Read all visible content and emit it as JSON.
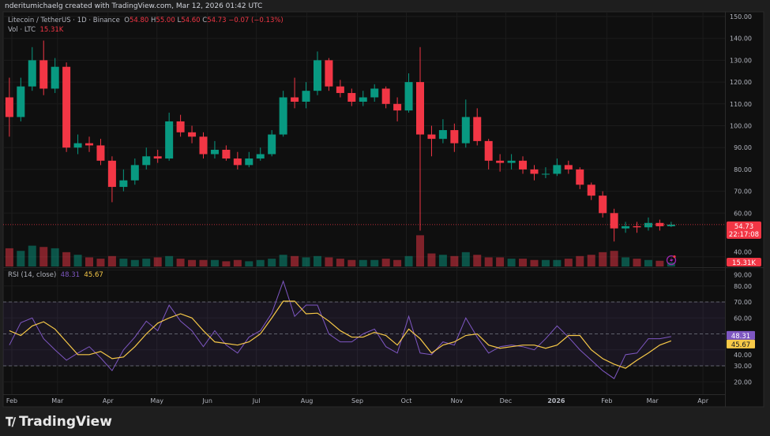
{
  "attribution": "nderitumichaelg created with TradingView.com, Mar 12, 2026 01:42 UTC",
  "legend": {
    "symbol": "Litecoin / TetherUS · 1D · Binance",
    "o_label": "O",
    "o": "54.80",
    "h_label": "H",
    "h": "55.00",
    "l_label": "L",
    "l": "54.60",
    "c_label": "C",
    "c": "54.73",
    "change": "−0.07 (−0.13%)",
    "vol_label": "Vol · LTC",
    "vol": "15.31K",
    "rsi_label": "RSI (14, close)",
    "rsi": "48.31",
    "rsi_ma": "45.67"
  },
  "price_label": {
    "value": "54.73",
    "countdown": "22:17:08"
  },
  "logo_text": "TradingView",
  "colors": {
    "up": "#089981",
    "down": "#f23645",
    "rsi": "#7e57c2",
    "rsi_ma": "#f7c948",
    "background": "#0f0f0f"
  },
  "chart_data": [
    {
      "type": "candlestick",
      "title": "Litecoin / TetherUS · 1D · Binance",
      "ylim": [
        40,
        150
      ],
      "y_ticks": [
        "150.00",
        "140.00",
        "130.00",
        "120.00",
        "110.00",
        "100.00",
        "90.00",
        "80.00",
        "70.00",
        "60.00",
        "40.00"
      ],
      "x_ticks": [
        {
          "label": "Feb",
          "date": "2025-02-01"
        },
        {
          "label": "Mar",
          "date": "2025-03-01"
        },
        {
          "label": "Apr",
          "date": "2025-04-01"
        },
        {
          "label": "May",
          "date": "2025-05-01"
        },
        {
          "label": "Jun",
          "date": "2025-06-01"
        },
        {
          "label": "Jul",
          "date": "2025-07-01"
        },
        {
          "label": "Aug",
          "date": "2025-08-01"
        },
        {
          "label": "Sep",
          "date": "2025-09-01"
        },
        {
          "label": "Oct",
          "date": "2025-10-01"
        },
        {
          "label": "Nov",
          "date": "2025-11-01"
        },
        {
          "label": "Dec",
          "date": "2025-12-01"
        },
        {
          "label": "2026",
          "date": "2026-01-01"
        },
        {
          "label": "Feb",
          "date": "2026-02-01"
        },
        {
          "label": "Mar",
          "date": "2026-03-01"
        },
        {
          "label": "Apr",
          "date": "2026-04-01"
        }
      ],
      "grid": true,
      "dates": [
        "2025-01-27",
        "2025-02-03",
        "2025-02-10",
        "2025-02-17",
        "2025-02-24",
        "2025-03-03",
        "2025-03-10",
        "2025-03-17",
        "2025-03-24",
        "2025-03-31",
        "2025-04-07",
        "2025-04-14",
        "2025-04-21",
        "2025-04-28",
        "2025-05-05",
        "2025-05-12",
        "2025-05-19",
        "2025-05-26",
        "2025-06-02",
        "2025-06-09",
        "2025-06-16",
        "2025-06-23",
        "2025-06-30",
        "2025-07-07",
        "2025-07-14",
        "2025-07-21",
        "2025-07-28",
        "2025-08-04",
        "2025-08-11",
        "2025-08-18",
        "2025-08-25",
        "2025-09-01",
        "2025-09-08",
        "2025-09-15",
        "2025-09-22",
        "2025-09-29",
        "2025-10-06",
        "2025-10-13",
        "2025-10-20",
        "2025-10-27",
        "2025-11-03",
        "2025-11-10",
        "2025-11-17",
        "2025-11-24",
        "2025-12-01",
        "2025-12-08",
        "2025-12-15",
        "2025-12-22",
        "2025-12-29",
        "2026-01-05",
        "2026-01-12",
        "2026-01-19",
        "2026-01-26",
        "2026-02-02",
        "2026-02-09",
        "2026-02-16",
        "2026-02-23",
        "2026-03-02",
        "2026-03-09"
      ],
      "open": [
        113,
        104,
        118,
        130,
        117,
        127,
        90,
        92,
        91,
        84,
        72,
        75,
        82,
        86,
        85,
        102,
        97,
        95,
        87,
        89,
        85,
        82,
        85,
        87,
        96,
        113,
        111,
        116,
        130,
        118,
        115,
        111,
        113,
        117,
        110,
        107,
        120,
        96,
        94,
        98,
        92,
        104,
        93,
        84,
        83,
        84,
        80,
        78,
        78,
        82,
        80,
        73,
        68,
        60,
        53,
        54,
        53.5,
        55.5,
        54
      ],
      "high": [
        122,
        122,
        136,
        139,
        131,
        129,
        96,
        95,
        94,
        86,
        80,
        85,
        90,
        89,
        106,
        105,
        100,
        97,
        93,
        91,
        88,
        88,
        90,
        98,
        116,
        122,
        120,
        134,
        131,
        121,
        117,
        116,
        119,
        118,
        113,
        124,
        136,
        100,
        103,
        101,
        112,
        108,
        94,
        87,
        87,
        86,
        82,
        81,
        85,
        84,
        81,
        74,
        70,
        62,
        56,
        56,
        58,
        57,
        56
      ],
      "low": [
        95,
        102,
        116,
        114,
        115,
        88,
        87,
        88,
        82,
        65,
        70,
        73,
        80,
        83,
        84,
        95,
        92,
        85,
        85,
        84,
        80,
        81,
        84,
        86,
        95,
        108,
        108,
        114,
        116,
        113,
        109,
        109,
        111,
        108,
        102,
        106,
        52,
        86,
        92,
        88,
        90,
        91,
        80,
        79,
        80,
        78,
        75,
        76,
        77,
        78,
        71,
        66,
        58,
        47,
        51,
        51,
        52,
        52,
        53.6
      ],
      "close": [
        104,
        118,
        130,
        117,
        127,
        90,
        92,
        91,
        84,
        72,
        75,
        82,
        86,
        85,
        102,
        97,
        95,
        87,
        89,
        85,
        82,
        85,
        87,
        96,
        113,
        111,
        116,
        130,
        118,
        115,
        111,
        113,
        117,
        110,
        107,
        120,
        96,
        94,
        98,
        92,
        104,
        93,
        84,
        83,
        84,
        80,
        78,
        78,
        82,
        80,
        73,
        68,
        60,
        53,
        54,
        53.5,
        55.5,
        54,
        54.73
      ],
      "last_price": 54.73
    },
    {
      "type": "bar",
      "series_label": "Vol · LTC",
      "unit": "K",
      "values": [
        70,
        60,
        80,
        75,
        70,
        55,
        45,
        35,
        30,
        40,
        30,
        25,
        30,
        35,
        40,
        30,
        25,
        25,
        25,
        20,
        25,
        20,
        25,
        30,
        45,
        40,
        35,
        40,
        35,
        30,
        25,
        25,
        25,
        30,
        25,
        40,
        120,
        50,
        45,
        40,
        55,
        45,
        35,
        35,
        30,
        30,
        25,
        25,
        25,
        30,
        40,
        45,
        55,
        60,
        35,
        30,
        25,
        22,
        15.31
      ]
    },
    {
      "type": "line",
      "title": "RSI (14, close)",
      "ylim": [
        15,
        92
      ],
      "y_ticks": [
        "90.00",
        "80.00",
        "70.00",
        "60.00",
        "40.00",
        "30.00",
        "20.00"
      ],
      "bands": {
        "upper": 70,
        "middle": 50,
        "lower": 30
      },
      "series": [
        {
          "values": [
            43,
            57,
            60,
            47,
            40,
            33.5,
            38,
            42,
            35,
            27,
            40,
            48,
            58,
            52,
            68,
            58,
            52,
            42,
            52,
            43,
            38,
            48,
            52,
            63,
            83,
            61,
            68,
            68,
            50,
            45,
            45,
            50,
            53,
            42,
            38,
            61,
            38,
            37,
            45,
            43,
            60,
            48,
            38,
            42,
            43,
            42,
            40,
            47,
            55,
            48,
            40,
            33.5,
            27,
            22,
            37,
            38,
            47,
            47,
            48.31
          ]
        },
        {
          "values": [
            52,
            49,
            55,
            57.6,
            53,
            45,
            37,
            37,
            39,
            34.5,
            35.5,
            42,
            50,
            56.7,
            60,
            62.6,
            60,
            52,
            45,
            44,
            43,
            45,
            50,
            60,
            70.5,
            70.5,
            62.6,
            63,
            58,
            52,
            48,
            48,
            51,
            49,
            43,
            53,
            47,
            38,
            43,
            45,
            49,
            50,
            43,
            41,
            42,
            43,
            43,
            41,
            43,
            49,
            49,
            40,
            34.5,
            31,
            28.5,
            33.5,
            38,
            43,
            45.67
          ]
        }
      ]
    }
  ]
}
